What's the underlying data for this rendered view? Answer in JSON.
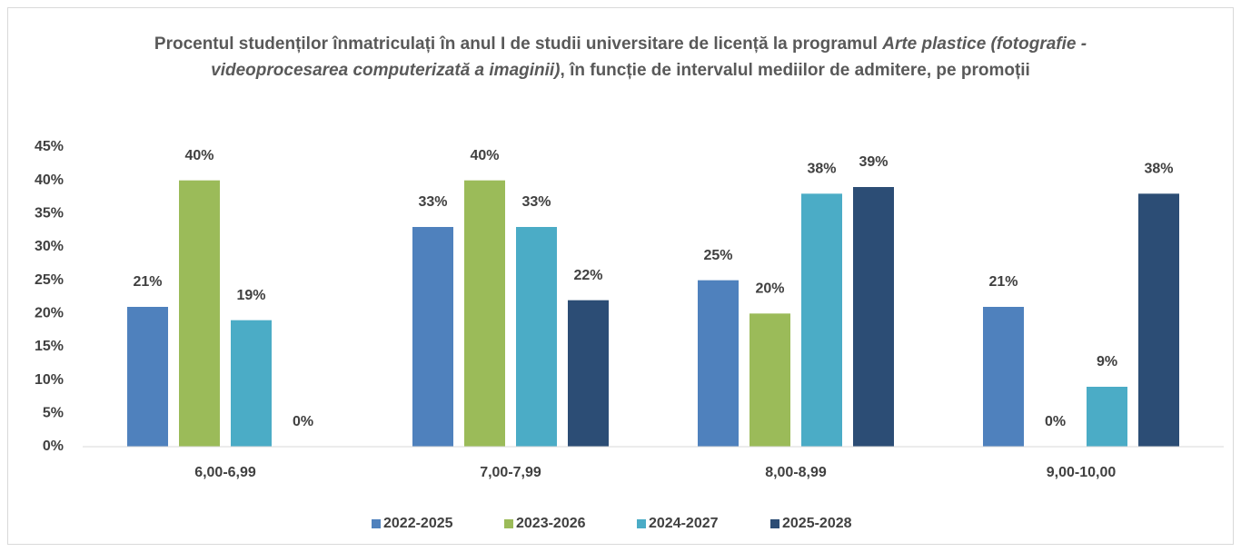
{
  "chart_data": {
    "type": "bar",
    "title": [
      {
        "text": "Procentul studenților înmatriculați în anul I de studii universitare de licență la programul ",
        "italic": false
      },
      {
        "text": "Arte plastice (fotografie - videoprocesarea computerizată a imaginii)",
        "italic": true
      },
      {
        "text": ", în funcție de intervalul mediilor de admitere, pe promoții",
        "italic": false
      }
    ],
    "categories": [
      "6,00-6,99",
      "7,00-7,99",
      "8,00-8,99",
      "9,00-10,00"
    ],
    "series": [
      {
        "name": "2022-2025",
        "color": "#4f81bd",
        "values": [
          21,
          33,
          25,
          21
        ],
        "value_labels": [
          "21%",
          "33%",
          "25%",
          "21%"
        ]
      },
      {
        "name": "2023-2026",
        "color": "#9bbb59",
        "values": [
          40,
          40,
          20,
          0
        ],
        "value_labels": [
          "40%",
          "40%",
          "20%",
          "0%"
        ]
      },
      {
        "name": "2024-2027",
        "color": "#4bacc6",
        "values": [
          19,
          33,
          38,
          9
        ],
        "value_labels": [
          "19%",
          "33%",
          "38%",
          "9%"
        ]
      },
      {
        "name": "2025-2028",
        "color": "#2c4d75",
        "values": [
          0,
          22,
          39,
          38
        ],
        "value_labels": [
          "0%",
          "22%",
          "39%",
          "38%"
        ]
      }
    ],
    "ylim": [
      0,
      45
    ],
    "yticks": [
      {
        "value": 0,
        "label": "0%"
      },
      {
        "value": 5,
        "label": "5%"
      },
      {
        "value": 10,
        "label": "10%"
      },
      {
        "value": 15,
        "label": "15%"
      },
      {
        "value": 20,
        "label": "20%"
      },
      {
        "value": 25,
        "label": "25%"
      },
      {
        "value": 30,
        "label": "30%"
      },
      {
        "value": 35,
        "label": "35%"
      },
      {
        "value": 40,
        "label": "40%"
      },
      {
        "value": 45,
        "label": "45%"
      }
    ],
    "grid": false,
    "legend": "bottom"
  }
}
